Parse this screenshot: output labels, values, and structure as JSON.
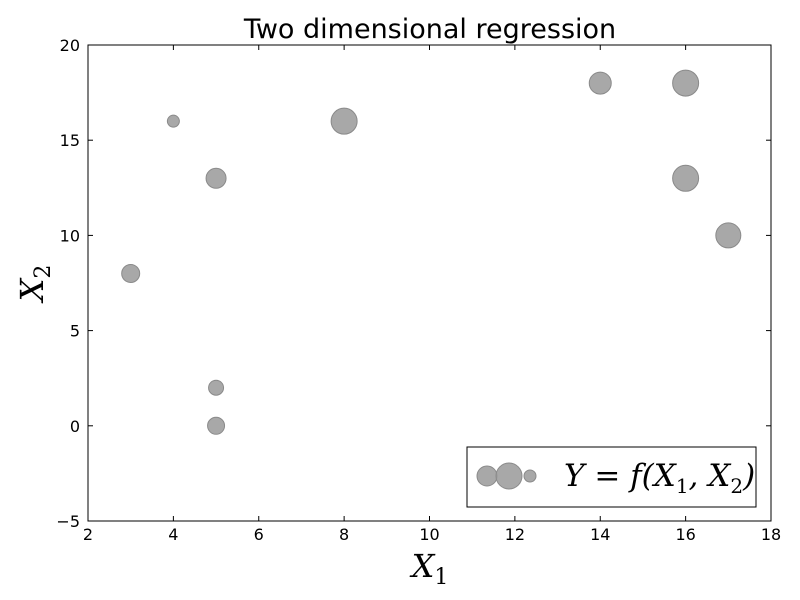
{
  "chart_data": {
    "type": "scatter",
    "title": "Two dimensional regression",
    "xlabel": {
      "base": "X",
      "sub": "1"
    },
    "ylabel": {
      "base": "X",
      "sub": "2"
    },
    "xlim": [
      2,
      18
    ],
    "ylim": [
      -5,
      20
    ],
    "xticks": [
      2,
      4,
      6,
      8,
      10,
      12,
      14,
      16,
      18
    ],
    "yticks": [
      -5,
      0,
      5,
      10,
      15,
      20
    ],
    "ytick_labels": [
      "−5",
      "0",
      "5",
      "10",
      "15",
      "20"
    ],
    "grid": false,
    "legend_placement": "lower-right",
    "marker_color": "#999999",
    "legend": {
      "parts": [
        {
          "t": "Y",
          "sub": false
        },
        {
          "t": " = ",
          "sub": false
        },
        {
          "t": "f",
          "sub": false
        },
        {
          "t": "(X",
          "sub": false
        },
        {
          "t": "1",
          "sub": true
        },
        {
          "t": ", X",
          "sub": false
        },
        {
          "t": "2",
          "sub": true
        },
        {
          "t": ")",
          "sub": false
        }
      ],
      "marker_sizes": [
        10,
        13,
        6
      ]
    },
    "points": [
      {
        "x": 3,
        "y": 8,
        "size": 9
      },
      {
        "x": 4,
        "y": 16,
        "size": 6
      },
      {
        "x": 5,
        "y": 13,
        "size": 10
      },
      {
        "x": 5,
        "y": 2,
        "size": 7.5
      },
      {
        "x": 5,
        "y": 0,
        "size": 8.5
      },
      {
        "x": 8,
        "y": 16,
        "size": 13
      },
      {
        "x": 14,
        "y": 18,
        "size": 11
      },
      {
        "x": 16,
        "y": 18,
        "size": 13
      },
      {
        "x": 16,
        "y": 13,
        "size": 13
      },
      {
        "x": 17,
        "y": 10,
        "size": 12.5
      }
    ]
  }
}
